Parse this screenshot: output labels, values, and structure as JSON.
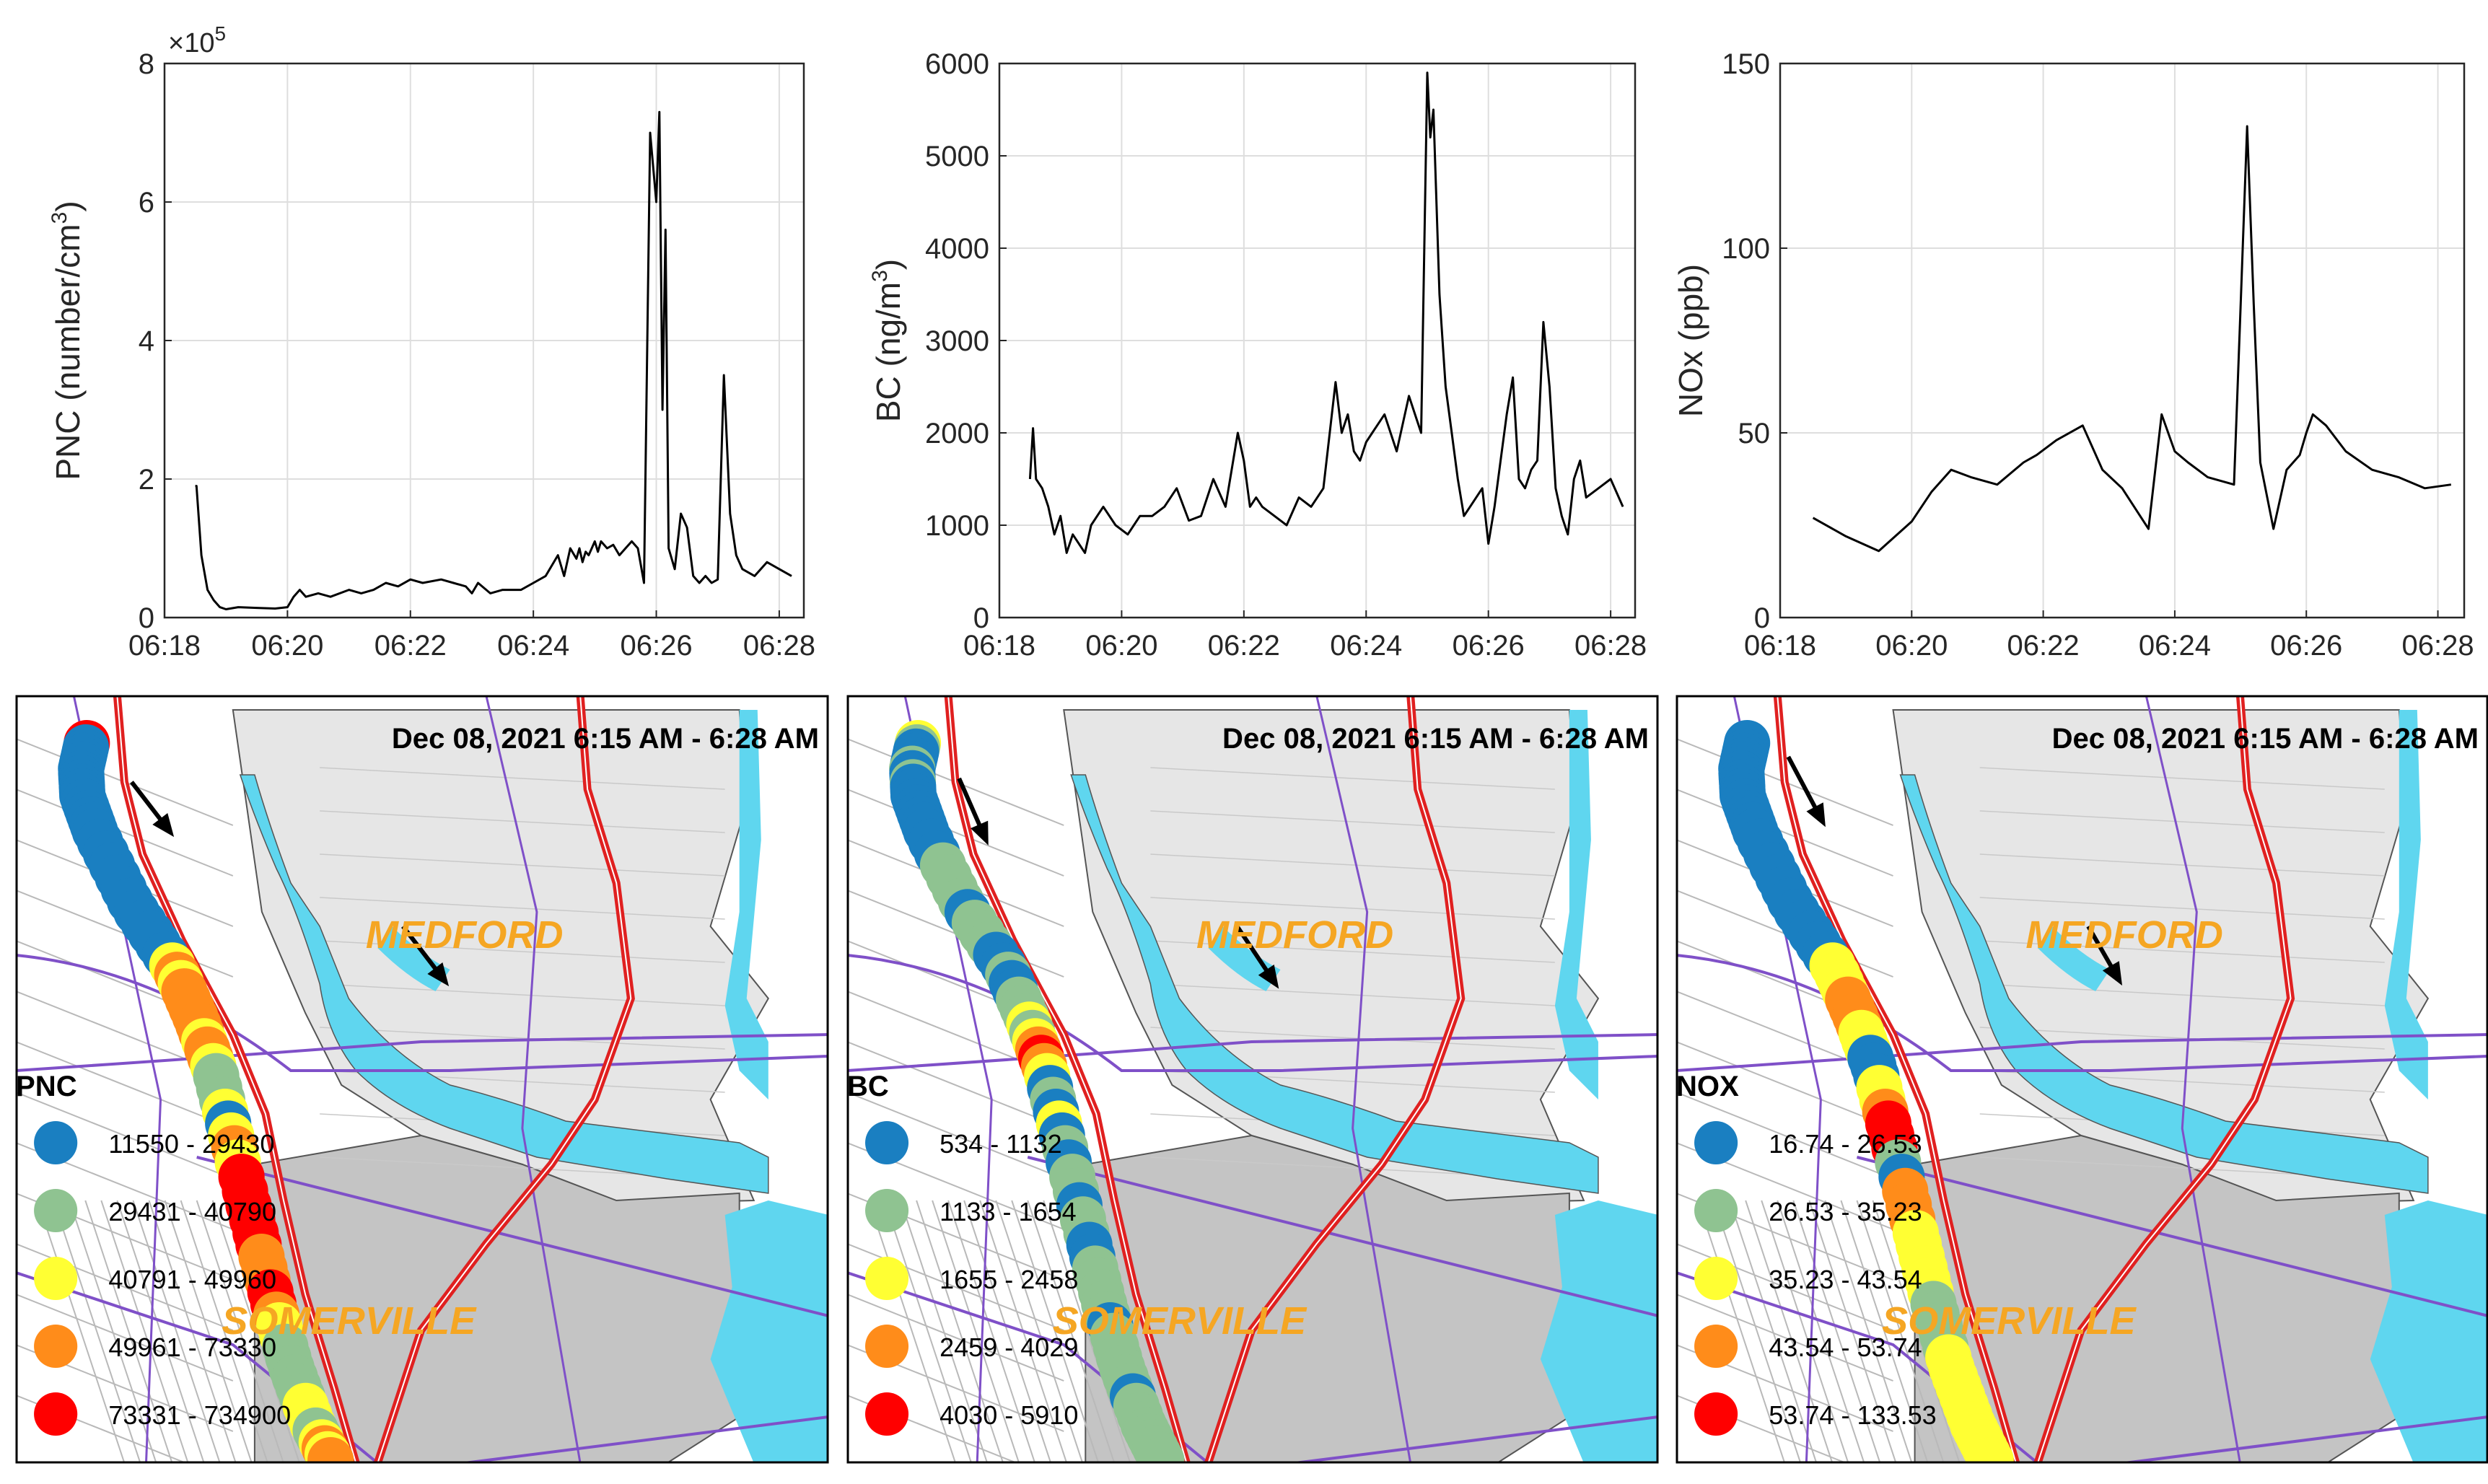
{
  "chart_data": [
    {
      "type": "line",
      "name": "PNC",
      "ylabel_main": "PNC (number/cm",
      "ylabel_sup": "3",
      "ylabel_tail": ")",
      "multiplier_base": "×10",
      "multiplier_exp": "5",
      "yticks": [
        "0",
        "2",
        "4",
        "6",
        "8"
      ],
      "ylim": [
        0,
        8
      ],
      "xticks": [
        "06:18",
        "06:20",
        "06:22",
        "06:24",
        "06:26",
        "06:28"
      ],
      "xlim": [
        0,
        10.4
      ],
      "series": [
        {
          "name": "PNC",
          "x": [
            0.5,
            0.52,
            0.6,
            0.7,
            0.8,
            0.9,
            1.0,
            1.2,
            1.5,
            1.8,
            2.0,
            2.1,
            2.2,
            2.3,
            2.5,
            2.7,
            3.0,
            3.2,
            3.4,
            3.6,
            3.8,
            4.0,
            4.2,
            4.5,
            4.7,
            4.9,
            5.0,
            5.1,
            5.3,
            5.5,
            5.8,
            6.0,
            6.2,
            6.4,
            6.5,
            6.6,
            6.7,
            6.75,
            6.8,
            6.85,
            6.9,
            6.95,
            7.0,
            7.05,
            7.1,
            7.2,
            7.3,
            7.4,
            7.5,
            7.6,
            7.7,
            7.8,
            7.9,
            8.0,
            8.05,
            8.1,
            8.15,
            8.2,
            8.3,
            8.4,
            8.5,
            8.6,
            8.7,
            8.8,
            8.9,
            9.0,
            9.1,
            9.2,
            9.3,
            9.4,
            9.6,
            9.8,
            10.0,
            10.2
          ],
          "y": [
            1.9,
            1.9,
            0.9,
            0.4,
            0.25,
            0.15,
            0.12,
            0.15,
            0.14,
            0.13,
            0.15,
            0.3,
            0.4,
            0.3,
            0.35,
            0.3,
            0.4,
            0.35,
            0.4,
            0.5,
            0.45,
            0.55,
            0.5,
            0.55,
            0.5,
            0.45,
            0.35,
            0.5,
            0.35,
            0.4,
            0.4,
            0.5,
            0.6,
            0.9,
            0.6,
            1.0,
            0.85,
            1.0,
            0.8,
            0.95,
            0.9,
            1.0,
            1.1,
            0.95,
            1.1,
            1.0,
            1.05,
            0.9,
            1.0,
            1.1,
            1.0,
            0.5,
            7.0,
            6.0,
            7.3,
            3.0,
            5.6,
            1.0,
            0.7,
            1.5,
            1.3,
            0.6,
            0.5,
            0.6,
            0.5,
            0.55,
            3.5,
            1.5,
            0.9,
            0.7,
            0.6,
            0.8,
            0.7,
            0.6
          ]
        }
      ]
    },
    {
      "type": "line",
      "name": "BC",
      "ylabel_main": "BC (ng/m",
      "ylabel_sup": "3",
      "ylabel_tail": ")",
      "yticks": [
        "0",
        "1000",
        "2000",
        "3000",
        "4000",
        "5000",
        "6000"
      ],
      "ylim": [
        0,
        6000
      ],
      "xticks": [
        "06:18",
        "06:20",
        "06:22",
        "06:24",
        "06:26",
        "06:28"
      ],
      "xlim": [
        0,
        10.4
      ],
      "series": [
        {
          "name": "BC",
          "x": [
            0.5,
            0.55,
            0.6,
            0.7,
            0.8,
            0.9,
            1.0,
            1.1,
            1.2,
            1.3,
            1.4,
            1.5,
            1.7,
            1.9,
            2.1,
            2.3,
            2.5,
            2.7,
            2.9,
            3.1,
            3.3,
            3.5,
            3.7,
            3.9,
            4.0,
            4.1,
            4.2,
            4.3,
            4.5,
            4.7,
            4.9,
            5.1,
            5.3,
            5.5,
            5.6,
            5.7,
            5.8,
            5.9,
            6.0,
            6.1,
            6.3,
            6.5,
            6.7,
            6.8,
            6.9,
            7.0,
            7.05,
            7.1,
            7.15,
            7.2,
            7.3,
            7.4,
            7.5,
            7.6,
            7.7,
            7.8,
            7.9,
            8.0,
            8.1,
            8.2,
            8.3,
            8.4,
            8.5,
            8.6,
            8.7,
            8.8,
            8.9,
            9.0,
            9.1,
            9.2,
            9.3,
            9.4,
            9.5,
            9.6,
            9.8,
            10.0,
            10.2
          ],
          "y": [
            1500,
            2050,
            1500,
            1400,
            1200,
            900,
            1100,
            700,
            900,
            800,
            700,
            1000,
            1200,
            1000,
            900,
            1100,
            1100,
            1200,
            1400,
            1050,
            1100,
            1500,
            1200,
            2000,
            1700,
            1200,
            1300,
            1200,
            1100,
            1000,
            1300,
            1200,
            1400,
            2550,
            2000,
            2200,
            1800,
            1700,
            1900,
            2000,
            2200,
            1800,
            2400,
            2200,
            2000,
            5900,
            5200,
            5500,
            4500,
            3500,
            2500,
            2000,
            1500,
            1100,
            1200,
            1300,
            1400,
            800,
            1200,
            1700,
            2200,
            2600,
            1500,
            1400,
            1600,
            1700,
            3200,
            2500,
            1400,
            1100,
            900,
            1500,
            1700,
            1300,
            1400,
            1500,
            1200
          ]
        }
      ]
    },
    {
      "type": "line",
      "name": "NOx",
      "ylabel_main": "NOx (ppb",
      "ylabel_sup": "",
      "ylabel_tail": ")",
      "yticks": [
        "0",
        "50",
        "100",
        "150"
      ],
      "ylim": [
        0,
        150
      ],
      "xticks": [
        "06:18",
        "06:20",
        "06:22",
        "06:24",
        "06:26",
        "06:28"
      ],
      "xlim": [
        0,
        10.4
      ],
      "series": [
        {
          "name": "NOx",
          "x": [
            0.5,
            1.0,
            1.5,
            2.0,
            2.3,
            2.6,
            2.9,
            3.3,
            3.7,
            3.9,
            4.2,
            4.6,
            4.9,
            5.2,
            5.6,
            5.8,
            6.0,
            6.2,
            6.5,
            6.9,
            7.0,
            7.1,
            7.2,
            7.3,
            7.5,
            7.7,
            7.9,
            8.0,
            8.1,
            8.3,
            8.6,
            9.0,
            9.4,
            9.8,
            10.2
          ],
          "y": [
            27,
            22,
            18,
            26,
            34,
            40,
            38,
            36,
            42,
            44,
            48,
            52,
            40,
            35,
            24,
            55,
            45,
            42,
            38,
            36,
            84,
            133,
            85,
            42,
            24,
            40,
            44,
            50,
            55,
            52,
            45,
            40,
            38,
            35,
            36
          ]
        }
      ]
    }
  ],
  "maps": [
    {
      "title": "Dec 08, 2021 6:15 AM - 6:28 AM",
      "city_north": "MEDFORD",
      "city_south": "SOMERVILLE",
      "legend_title": "PNC",
      "legend": [
        {
          "label": "11550 - 29430",
          "color": "#1a7fc1"
        },
        {
          "label": "29431 - 40790",
          "color": "#8fc391"
        },
        {
          "label": "40791 - 49960",
          "color": "#ffff33"
        },
        {
          "label": "49961 - 73330",
          "color": "#ff8c1a"
        },
        {
          "label": "73331 - 734900",
          "color": "#ff0000"
        }
      ]
    },
    {
      "title": "Dec 08, 2021 6:15 AM - 6:28 AM",
      "city_north": "MEDFORD",
      "city_south": "SOMERVILLE",
      "legend_title": "BC",
      "legend": [
        {
          "label": "534 - 1132",
          "color": "#1a7fc1"
        },
        {
          "label": "1133 - 1654",
          "color": "#8fc391"
        },
        {
          "label": "1655 - 2458",
          "color": "#ffff33"
        },
        {
          "label": "2459 - 4029",
          "color": "#ff8c1a"
        },
        {
          "label": "4030 - 5910",
          "color": "#ff0000"
        }
      ]
    },
    {
      "title": "Dec 08, 2021 6:15 AM - 6:28 AM",
      "city_north": "MEDFORD",
      "city_south": "SOMERVILLE",
      "legend_title": "NOX",
      "legend": [
        {
          "label": "16.74 - 26.53",
          "color": "#1a7fc1"
        },
        {
          "label": "26.53 - 35.23",
          "color": "#8fc391"
        },
        {
          "label": "35.23 - 43.54",
          "color": "#ffff33"
        },
        {
          "label": "43.54 - 53.74",
          "color": "#ff8c1a"
        },
        {
          "label": "53.74 - 133.53",
          "color": "#ff0000"
        }
      ]
    }
  ],
  "colors": {
    "water": "#5fd6ef",
    "land": "#e6e6e6",
    "somerville": "#c4c4c4",
    "road": "#7f50c8",
    "highway": "#e02020"
  }
}
